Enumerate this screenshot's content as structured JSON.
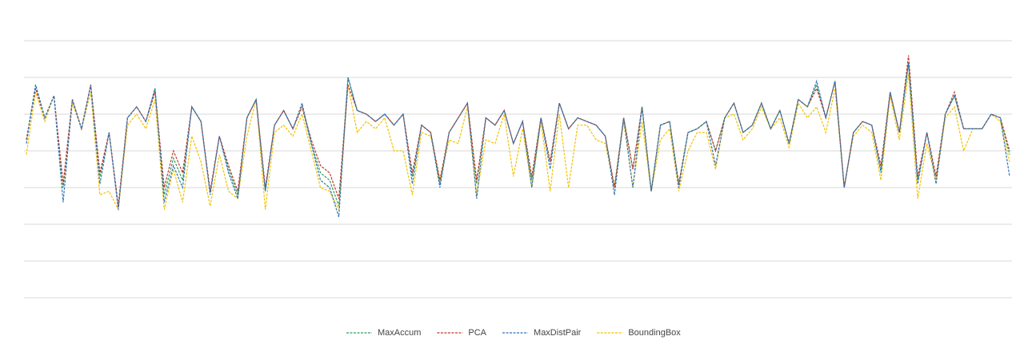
{
  "chart_data": {
    "type": "line",
    "ylim": [
      0,
      7
    ],
    "yticks": [
      0,
      1,
      2,
      3,
      4,
      5,
      6,
      7
    ],
    "grid": true,
    "legend": "bottom",
    "series": [
      {
        "name": "MaxAccum",
        "color": "#2e9e5b",
        "values": [
          4.3,
          5.8,
          4.9,
          5.5,
          3.0,
          5.4,
          4.6,
          5.8,
          3.3,
          4.5,
          2.5,
          4.9,
          5.2,
          4.8,
          5.7,
          2.8,
          3.8,
          3.2,
          5.2,
          4.8,
          2.9,
          4.4,
          3.5,
          2.8,
          4.9,
          5.4,
          2.9,
          4.7,
          5.1,
          4.6,
          5.2,
          4.2,
          3.4,
          3.2,
          2.5,
          6.0,
          5.1,
          5.0,
          4.8,
          5.0,
          4.7,
          5.0,
          3.3,
          4.7,
          4.5,
          3.1,
          4.5,
          4.9,
          5.3,
          3.1,
          4.9,
          4.7,
          5.1,
          4.2,
          4.8,
          3.2,
          4.9,
          3.7,
          5.3,
          4.6,
          4.9,
          4.8,
          4.7,
          4.4,
          3.0,
          4.9,
          3.5,
          5.2,
          2.9,
          4.7,
          4.8,
          3.1,
          4.5,
          4.6,
          4.8,
          4.0,
          4.9,
          5.3,
          4.5,
          4.7,
          5.3,
          4.6,
          5.1,
          4.2,
          5.4,
          5.2,
          5.8,
          4.9,
          5.9,
          3.0,
          4.5,
          4.8,
          4.7,
          3.5,
          5.6,
          4.5,
          6.4,
          3.2,
          4.5,
          3.3,
          5.0,
          5.5,
          4.6,
          4.6,
          4.6,
          5.0,
          4.9,
          3.9
        ]
      },
      {
        "name": "PCA",
        "color": "#c0392b",
        "values": [
          4.3,
          5.7,
          4.9,
          5.5,
          3.1,
          5.4,
          4.6,
          5.8,
          3.4,
          4.5,
          2.5,
          4.9,
          5.2,
          4.8,
          5.6,
          3.0,
          4.0,
          3.4,
          5.2,
          4.8,
          2.9,
          4.4,
          3.6,
          2.9,
          4.9,
          5.4,
          3.0,
          4.7,
          5.1,
          4.6,
          5.2,
          4.3,
          3.6,
          3.4,
          2.7,
          5.8,
          5.1,
          5.0,
          4.8,
          5.0,
          4.7,
          5.0,
          3.4,
          4.7,
          4.5,
          3.2,
          4.5,
          4.9,
          5.3,
          3.2,
          4.9,
          4.7,
          5.1,
          4.2,
          4.8,
          3.3,
          4.9,
          3.7,
          5.3,
          4.6,
          4.9,
          4.8,
          4.7,
          4.4,
          3.0,
          4.9,
          3.5,
          5.2,
          2.9,
          4.7,
          4.8,
          3.1,
          4.5,
          4.6,
          4.8,
          4.0,
          4.9,
          5.3,
          4.5,
          4.7,
          5.3,
          4.6,
          5.1,
          4.2,
          5.4,
          5.2,
          5.7,
          4.9,
          5.9,
          3.0,
          4.5,
          4.8,
          4.7,
          3.6,
          5.6,
          4.5,
          6.6,
          3.3,
          4.5,
          3.3,
          5.0,
          5.6,
          4.6,
          4.6,
          4.6,
          5.0,
          4.9,
          4.0
        ]
      },
      {
        "name": "MaxDistPair",
        "color": "#2e75b6",
        "values": [
          4.2,
          5.8,
          4.9,
          5.5,
          2.6,
          5.4,
          4.6,
          5.8,
          3.1,
          4.5,
          2.4,
          4.9,
          5.2,
          4.8,
          5.7,
          2.6,
          3.6,
          3.0,
          5.2,
          4.8,
          2.8,
          4.4,
          3.4,
          2.7,
          4.9,
          5.4,
          2.9,
          4.7,
          5.1,
          4.6,
          5.3,
          4.2,
          3.2,
          3.0,
          2.2,
          6.0,
          5.1,
          5.0,
          4.8,
          5.0,
          4.7,
          5.0,
          3.1,
          4.7,
          4.5,
          3.0,
          4.5,
          4.9,
          5.3,
          2.7,
          4.9,
          4.7,
          5.1,
          4.2,
          4.8,
          3.0,
          4.9,
          3.5,
          5.3,
          4.6,
          4.9,
          4.8,
          4.7,
          4.4,
          2.8,
          4.9,
          3.0,
          5.2,
          2.9,
          4.7,
          4.8,
          3.0,
          4.5,
          4.6,
          4.8,
          3.6,
          4.9,
          5.3,
          4.5,
          4.7,
          5.3,
          4.6,
          5.1,
          4.2,
          5.4,
          5.2,
          5.9,
          4.9,
          5.9,
          3.0,
          4.5,
          4.8,
          4.7,
          3.4,
          5.6,
          4.5,
          6.4,
          3.1,
          4.5,
          3.1,
          5.0,
          5.5,
          4.6,
          4.6,
          4.6,
          5.0,
          4.9,
          3.3
        ]
      },
      {
        "name": "BoundingBox",
        "color": "#f2c200",
        "values": [
          3.9,
          5.6,
          4.8,
          5.5,
          3.0,
          5.3,
          4.6,
          5.6,
          2.8,
          2.9,
          2.4,
          4.7,
          5.0,
          4.6,
          5.4,
          2.4,
          3.5,
          2.6,
          4.4,
          3.7,
          2.5,
          3.9,
          2.9,
          2.7,
          4.4,
          5.4,
          2.4,
          4.5,
          4.7,
          4.4,
          5.0,
          4.0,
          3.0,
          2.9,
          2.4,
          5.8,
          4.5,
          4.8,
          4.6,
          4.9,
          4.0,
          4.0,
          2.8,
          4.5,
          4.4,
          3.2,
          4.3,
          4.2,
          5.2,
          2.8,
          4.3,
          4.2,
          5.0,
          3.3,
          4.6,
          3.0,
          4.8,
          2.9,
          5.0,
          3.0,
          4.7,
          4.7,
          4.3,
          4.2,
          3.0,
          4.8,
          3.0,
          4.8,
          2.9,
          4.3,
          4.6,
          2.9,
          4.0,
          4.5,
          4.5,
          3.5,
          4.9,
          5.0,
          4.3,
          4.6,
          5.2,
          4.6,
          4.9,
          4.1,
          5.3,
          4.9,
          5.2,
          4.5,
          5.7,
          3.0,
          4.4,
          4.7,
          4.5,
          3.2,
          5.5,
          4.3,
          6.1,
          2.7,
          4.2,
          3.2,
          4.9,
          5.2,
          4.0,
          4.6,
          4.6,
          5.0,
          4.8,
          3.7
        ]
      }
    ]
  }
}
